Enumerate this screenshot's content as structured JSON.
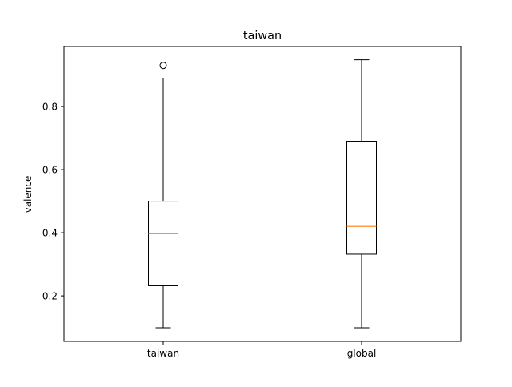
{
  "chart_data": {
    "type": "box",
    "title": "taiwan",
    "xlabel": "",
    "ylabel": "valence",
    "categories": [
      "taiwan",
      "global"
    ],
    "ylim": [
      0.056,
      0.99
    ],
    "yticks": [
      0.2,
      0.4,
      0.6,
      0.8
    ],
    "ytick_labels": [
      "0.2",
      "0.4",
      "0.6",
      "0.8"
    ],
    "grid": false,
    "boxes": [
      {
        "name": "taiwan",
        "whisker_low": 0.099,
        "q1": 0.232,
        "median": 0.397,
        "q3": 0.5,
        "whisker_high": 0.89,
        "outliers": [
          0.93
        ]
      },
      {
        "name": "global",
        "whisker_low": 0.099,
        "q1": 0.332,
        "median": 0.42,
        "q3": 0.69,
        "whisker_high": 0.948,
        "outliers": []
      }
    ],
    "colors": {
      "box": "#000000",
      "median": "#ff7f0e",
      "axes": "#000000",
      "background": "#ffffff"
    }
  }
}
